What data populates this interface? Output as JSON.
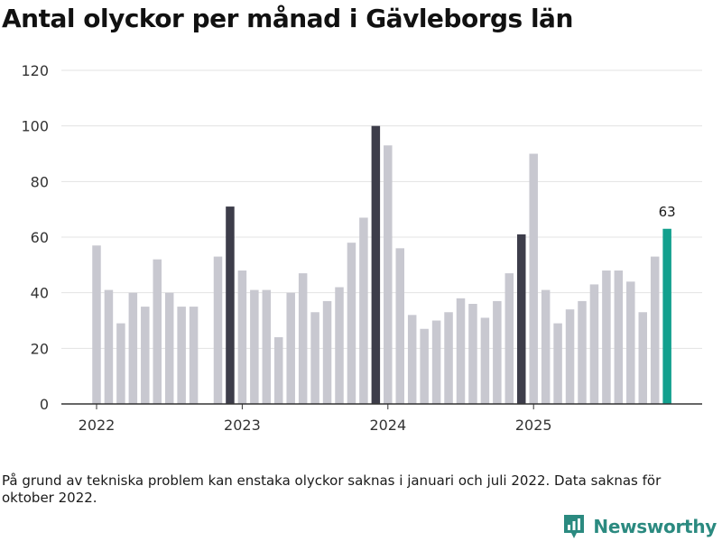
{
  "chart_data": {
    "type": "bar",
    "title": "Antal olyckor per månad i Gävleborgs län",
    "xlabel": "",
    "ylabel": "",
    "ylim": [
      0,
      120
    ],
    "yticks": [
      0,
      20,
      40,
      60,
      80,
      100,
      120
    ],
    "xticks": [
      "2022",
      "2023",
      "2024",
      "2025"
    ],
    "grid": "horizontal",
    "legend": "none",
    "colors": {
      "default": "#c8c8d0",
      "december": "#3d3d4a",
      "latest": "#12a08e",
      "grid": "#e3e3e3",
      "axis": "#333333"
    },
    "months": [
      "2022-01",
      "2022-02",
      "2022-03",
      "2022-04",
      "2022-05",
      "2022-06",
      "2022-07",
      "2022-08",
      "2022-09",
      "2022-10",
      "2022-11",
      "2022-12",
      "2023-01",
      "2023-02",
      "2023-03",
      "2023-04",
      "2023-05",
      "2023-06",
      "2023-07",
      "2023-08",
      "2023-09",
      "2023-10",
      "2023-11",
      "2023-12",
      "2024-01",
      "2024-02",
      "2024-03",
      "2024-04",
      "2024-05",
      "2024-06",
      "2024-07",
      "2024-08",
      "2024-09",
      "2024-10",
      "2024-11",
      "2024-12",
      "2025-01",
      "2025-02",
      "2025-03",
      "2025-04",
      "2025-05",
      "2025-06",
      "2025-07",
      "2025-08",
      "2025-09",
      "2025-10",
      "2025-11",
      "2025-12"
    ],
    "values": [
      57,
      41,
      29,
      40,
      35,
      52,
      40,
      35,
      35,
      null,
      53,
      71,
      48,
      41,
      41,
      24,
      40,
      47,
      33,
      37,
      42,
      58,
      67,
      100,
      93,
      56,
      32,
      27,
      30,
      33,
      38,
      36,
      31,
      37,
      47,
      61,
      90,
      41,
      29,
      34,
      37,
      43,
      48,
      48,
      44,
      33,
      53,
      63
    ],
    "highlight_latest_label": "63"
  },
  "footnote": "På grund av tekniska problem kan enstaka olyckor saknas i januari och juli 2022. Data saknas för oktober 2022.",
  "brand": {
    "name": "Newsworthy",
    "color": "#2b8a80",
    "icon": "newsworthy-logo-icon"
  }
}
